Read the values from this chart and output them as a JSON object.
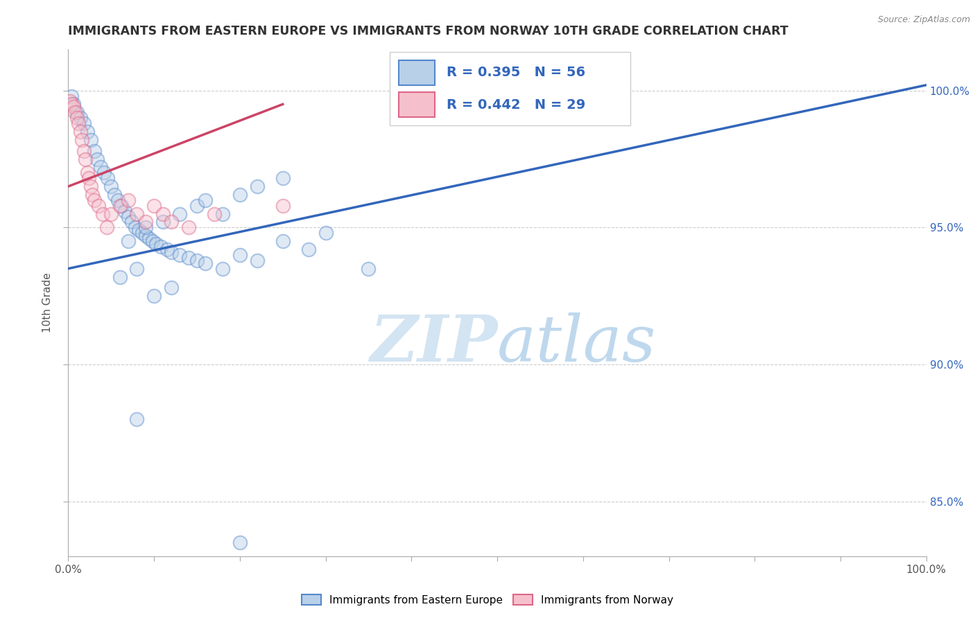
{
  "title": "IMMIGRANTS FROM EASTERN EUROPE VS IMMIGRANTS FROM NORWAY 10TH GRADE CORRELATION CHART",
  "source_text": "Source: ZipAtlas.com",
  "ylabel": "10th Grade",
  "legend_blue_label": "Immigrants from Eastern Europe",
  "legend_pink_label": "Immigrants from Norway",
  "legend_blue_r": "R = 0.395",
  "legend_blue_n": "N = 56",
  "legend_pink_r": "R = 0.442",
  "legend_pink_n": "N = 29",
  "blue_color": "#b8d0e8",
  "blue_edge_color": "#5588cc",
  "blue_line_color": "#3366bb",
  "pink_color": "#f5c0cc",
  "pink_edge_color": "#dd6688",
  "pink_line_color": "#cc4466",
  "watermark_zip": "ZIP",
  "watermark_atlas": "atlas",
  "xlim": [
    0.0,
    100.0
  ],
  "ylim": [
    83.0,
    101.5
  ],
  "yticks": [
    85.0,
    90.0,
    95.0,
    100.0
  ],
  "blue_scatter": [
    [
      0.4,
      99.8
    ],
    [
      0.6,
      99.5
    ],
    [
      1.0,
      99.2
    ],
    [
      1.4,
      99.0
    ],
    [
      1.8,
      98.8
    ],
    [
      2.2,
      98.5
    ],
    [
      2.6,
      98.2
    ],
    [
      3.0,
      97.8
    ],
    [
      3.4,
      97.5
    ],
    [
      3.8,
      97.2
    ],
    [
      4.2,
      97.0
    ],
    [
      4.6,
      96.8
    ],
    [
      5.0,
      96.5
    ],
    [
      5.4,
      96.2
    ],
    [
      5.8,
      96.0
    ],
    [
      6.2,
      95.8
    ],
    [
      6.6,
      95.6
    ],
    [
      7.0,
      95.4
    ],
    [
      7.4,
      95.2
    ],
    [
      7.8,
      95.0
    ],
    [
      8.2,
      94.9
    ],
    [
      8.6,
      94.8
    ],
    [
      9.0,
      94.7
    ],
    [
      9.4,
      94.6
    ],
    [
      9.8,
      94.5
    ],
    [
      10.2,
      94.4
    ],
    [
      10.8,
      94.3
    ],
    [
      11.5,
      94.2
    ],
    [
      12.0,
      94.1
    ],
    [
      13.0,
      94.0
    ],
    [
      14.0,
      93.9
    ],
    [
      15.0,
      93.8
    ],
    [
      16.0,
      93.7
    ],
    [
      18.0,
      93.5
    ],
    [
      20.0,
      94.0
    ],
    [
      22.0,
      93.8
    ],
    [
      25.0,
      94.5
    ],
    [
      28.0,
      94.2
    ],
    [
      30.0,
      94.8
    ],
    [
      35.0,
      93.5
    ],
    [
      7.0,
      94.5
    ],
    [
      9.0,
      95.0
    ],
    [
      11.0,
      95.2
    ],
    [
      13.0,
      95.5
    ],
    [
      15.0,
      95.8
    ],
    [
      16.0,
      96.0
    ],
    [
      18.0,
      95.5
    ],
    [
      20.0,
      96.2
    ],
    [
      22.0,
      96.5
    ],
    [
      25.0,
      96.8
    ],
    [
      6.0,
      93.2
    ],
    [
      8.0,
      93.5
    ],
    [
      10.0,
      92.5
    ],
    [
      12.0,
      92.8
    ],
    [
      20.0,
      83.5
    ],
    [
      8.0,
      88.0
    ]
  ],
  "pink_scatter": [
    [
      0.2,
      99.6
    ],
    [
      0.4,
      99.5
    ],
    [
      0.6,
      99.4
    ],
    [
      0.8,
      99.2
    ],
    [
      1.0,
      99.0
    ],
    [
      1.2,
      98.8
    ],
    [
      1.4,
      98.5
    ],
    [
      1.6,
      98.2
    ],
    [
      1.8,
      97.8
    ],
    [
      2.0,
      97.5
    ],
    [
      2.2,
      97.0
    ],
    [
      2.4,
      96.8
    ],
    [
      2.6,
      96.5
    ],
    [
      2.8,
      96.2
    ],
    [
      3.0,
      96.0
    ],
    [
      3.5,
      95.8
    ],
    [
      4.0,
      95.5
    ],
    [
      4.5,
      95.0
    ],
    [
      5.0,
      95.5
    ],
    [
      6.0,
      95.8
    ],
    [
      7.0,
      96.0
    ],
    [
      8.0,
      95.5
    ],
    [
      9.0,
      95.2
    ],
    [
      10.0,
      95.8
    ],
    [
      11.0,
      95.5
    ],
    [
      12.0,
      95.2
    ],
    [
      14.0,
      95.0
    ],
    [
      17.0,
      95.5
    ],
    [
      25.0,
      95.8
    ]
  ],
  "blue_trend_x": [
    0.0,
    100.0
  ],
  "blue_trend_y": [
    93.5,
    100.2
  ],
  "pink_trend_x": [
    0.0,
    25.0
  ],
  "pink_trend_y": [
    96.5,
    99.5
  ],
  "background_color": "#ffffff",
  "grid_color": "#cccccc",
  "title_fontsize": 12.5,
  "label_fontsize": 11,
  "tick_fontsize": 11,
  "scatter_size": 200,
  "scatter_alpha": 0.45,
  "scatter_lw": 1.5
}
